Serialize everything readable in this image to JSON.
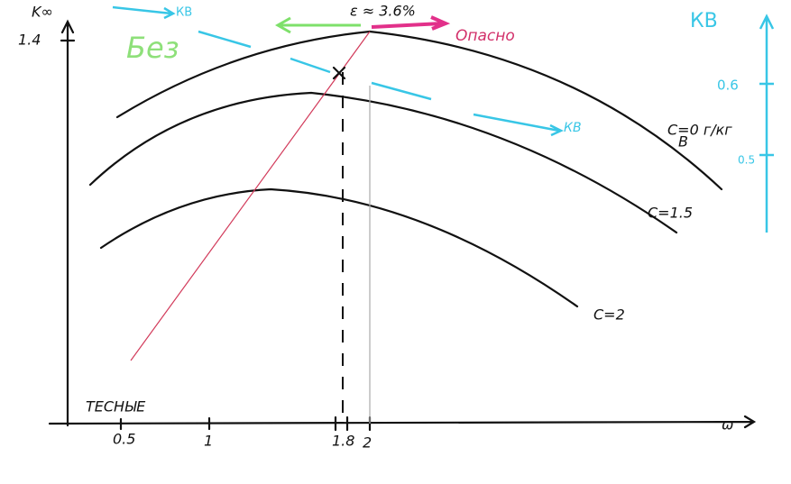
{
  "axes": {
    "y_label": "K∞",
    "x_label": "ω",
    "y_tick": "1.4",
    "x_ticks": [
      "0.5",
      "1",
      "1.8",
      "2"
    ],
    "x_note": "ТЕСНЫЕ"
  },
  "annotations": {
    "epsilon": "ε ≈ 3.6%",
    "danger": "Опасно",
    "without": "Без",
    "kv_top": "КВ",
    "kv_mid": "КВ"
  },
  "right_axis": {
    "label": "КВ",
    "ticks": [
      "0.6",
      "0.5"
    ]
  },
  "curves": [
    "C=0 г/кг",
    "C=1.5",
    "C=2"
  ],
  "curve_subscript": "B"
}
